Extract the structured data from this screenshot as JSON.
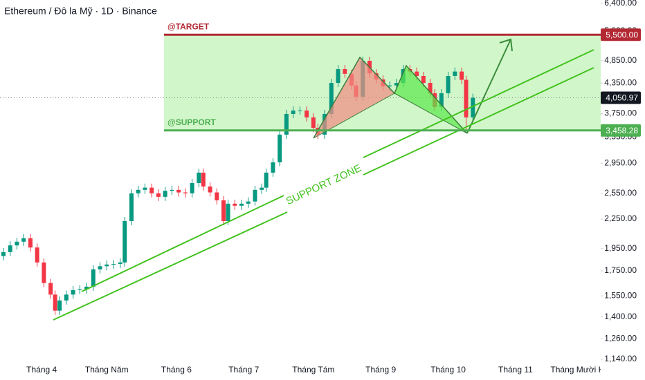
{
  "chart_data": {
    "type": "candlestick",
    "title": "Ethereum / Đô la Mỹ · 1D · Binance",
    "x": [
      0,
      3,
      6,
      9,
      12,
      15,
      18,
      21,
      23,
      25,
      28,
      31,
      34,
      37,
      40,
      43,
      46,
      49,
      52,
      54,
      57,
      60,
      63,
      66,
      69,
      72,
      75,
      78,
      81,
      84,
      87,
      89,
      92,
      95,
      98,
      100,
      103,
      106,
      109,
      112,
      115,
      117,
      120,
      123,
      126,
      129,
      132,
      135,
      138,
      140,
      143,
      146,
      149,
      152,
      155,
      157,
      160,
      163,
      166,
      169,
      172,
      175,
      178,
      181,
      184,
      187,
      190,
      192,
      195,
      198,
      201,
      204,
      206,
      209
    ],
    "open": [
      1880,
      1917,
      1980,
      2016,
      2050,
      1960,
      1823,
      1650,
      1560,
      1443,
      1516,
      1560,
      1594,
      1600,
      1621,
      1763,
      1790,
      1805,
      1810,
      1823,
      2228,
      2549,
      2592,
      2620,
      2549,
      2506,
      2580,
      2592,
      2560,
      2549,
      2679,
      2818,
      2635,
      2560,
      2464,
      2228,
      2424,
      2400,
      2424,
      2450,
      2592,
      2620,
      2818,
      2963,
      3388,
      3745,
      3808,
      3808,
      3683,
      3500,
      3388,
      3745,
      4353,
      4655,
      4550,
      4300,
      4072,
      4847,
      4560,
      4428,
      4282,
      4300,
      4353,
      4655,
      4600,
      4502,
      4353,
      4141,
      3873,
      4141,
      4502,
      4600,
      4420,
      3683
    ],
    "high": [
      1955,
      2020,
      2056,
      2091,
      2091,
      1999,
      1859,
      1683,
      1591,
      1546,
      1591,
      1626,
      1632,
      1653,
      1798,
      1826,
      1841,
      1846,
      1859,
      2273,
      2600,
      2644,
      2672,
      2672,
      2600,
      2632,
      2644,
      2644,
      2611,
      2733,
      2874,
      2874,
      2688,
      2611,
      2513,
      2472,
      2472,
      2472,
      2499,
      2644,
      2672,
      2874,
      3022,
      3456,
      3820,
      3884,
      3884,
      3884,
      3757,
      3570,
      3820,
      4440,
      4748,
      4748,
      4641,
      4386,
      4944,
      4944,
      4651,
      4517,
      4386,
      4440,
      4748,
      4748,
      4692,
      4592,
      4440,
      4224,
      4224,
      4592,
      4692,
      4692,
      4508,
      4132
    ],
    "low": [
      1842,
      1879,
      1940,
      1976,
      1921,
      1787,
      1617,
      1529,
      1414,
      1414,
      1486,
      1529,
      1562,
      1568,
      1589,
      1728,
      1754,
      1769,
      1774,
      1787,
      2183,
      2498,
      2540,
      2498,
      2456,
      2456,
      2528,
      2509,
      2498,
      2498,
      2625,
      2582,
      2509,
      2415,
      2183,
      2183,
      2352,
      2352,
      2376,
      2401,
      2540,
      2568,
      2762,
      2904,
      3320,
      3670,
      3732,
      3609,
      3430,
      3320,
      3320,
      3670,
      4266,
      4459,
      4214,
      3991,
      3991,
      4469,
      4339,
      4196,
      4196,
      4214,
      4266,
      4508,
      4412,
      4266,
      4058,
      3796,
      3796,
      4058,
      4412,
      4332,
      3458,
      3609
    ],
    "close": [
      1917,
      1980,
      2016,
      2050,
      1960,
      1823,
      1650,
      1560,
      1443,
      1516,
      1560,
      1594,
      1600,
      1621,
      1763,
      1790,
      1805,
      1810,
      1823,
      2228,
      2549,
      2592,
      2620,
      2549,
      2506,
      2580,
      2592,
      2560,
      2549,
      2679,
      2818,
      2635,
      2560,
      2464,
      2228,
      2424,
      2400,
      2424,
      2450,
      2592,
      2620,
      2818,
      2963,
      3388,
      3745,
      3808,
      3808,
      3683,
      3500,
      3388,
      3745,
      4353,
      4655,
      4550,
      4300,
      4072,
      4847,
      4560,
      4428,
      4282,
      4300,
      4353,
      4655,
      4600,
      4502,
      4353,
      4141,
      3873,
      4141,
      4502,
      4600,
      4420,
      3683,
      4050.97
    ],
    "up_color": "#089981",
    "down_color": "#f23645",
    "xlim": [
      0,
      265
    ],
    "xticks": [
      {
        "value": 17,
        "label": "Tháng 4"
      },
      {
        "value": 46,
        "label": "Tháng Năm"
      },
      {
        "value": 77,
        "label": "Tháng 6"
      },
      {
        "value": 107,
        "label": "Tháng 7"
      },
      {
        "value": 138,
        "label": "Tháng Tám"
      },
      {
        "value": 168,
        "label": "Tháng 9"
      },
      {
        "value": 198,
        "label": "Tháng 10"
      },
      {
        "value": 228,
        "label": "Tháng 11"
      },
      {
        "value": 257,
        "label": "Tháng Mười Hai"
      }
    ],
    "ylim": [
      1140,
      6400
    ],
    "log_scale": true,
    "yticks": [
      {
        "value": 6400,
        "label": "6,400.00"
      },
      {
        "value": 5600,
        "label": "5,600.00"
      },
      {
        "value": 4850,
        "label": "4,850.00"
      },
      {
        "value": 4350,
        "label": "4,350.00"
      },
      {
        "value": 3750,
        "label": "3,750.00"
      },
      {
        "value": 3350,
        "label": "3,350.00"
      },
      {
        "value": 2950,
        "label": "2,950.00"
      },
      {
        "value": 2550,
        "label": "2,550.00"
      },
      {
        "value": 2250,
        "label": "2,250.00"
      },
      {
        "value": 1950,
        "label": "1,950.00"
      },
      {
        "value": 1750,
        "label": "1,750.00"
      },
      {
        "value": 1550,
        "label": "1,550.00"
      },
      {
        "value": 1400,
        "label": "1,400.00"
      },
      {
        "value": 1260,
        "label": "1,260.00"
      },
      {
        "value": 1140,
        "label": "1,140.00"
      }
    ],
    "target": {
      "name": "@TARGET",
      "value": 5500,
      "label": "5,500.00",
      "color": "#b22833"
    },
    "support": {
      "name": "@SUPPORT",
      "value": 3458.28,
      "label": "3,458.28",
      "color": "#4caf50"
    },
    "last_price": {
      "value": 4050.97,
      "label": "4,050.97"
    },
    "zone_label": "SUPPORT ZONE"
  }
}
